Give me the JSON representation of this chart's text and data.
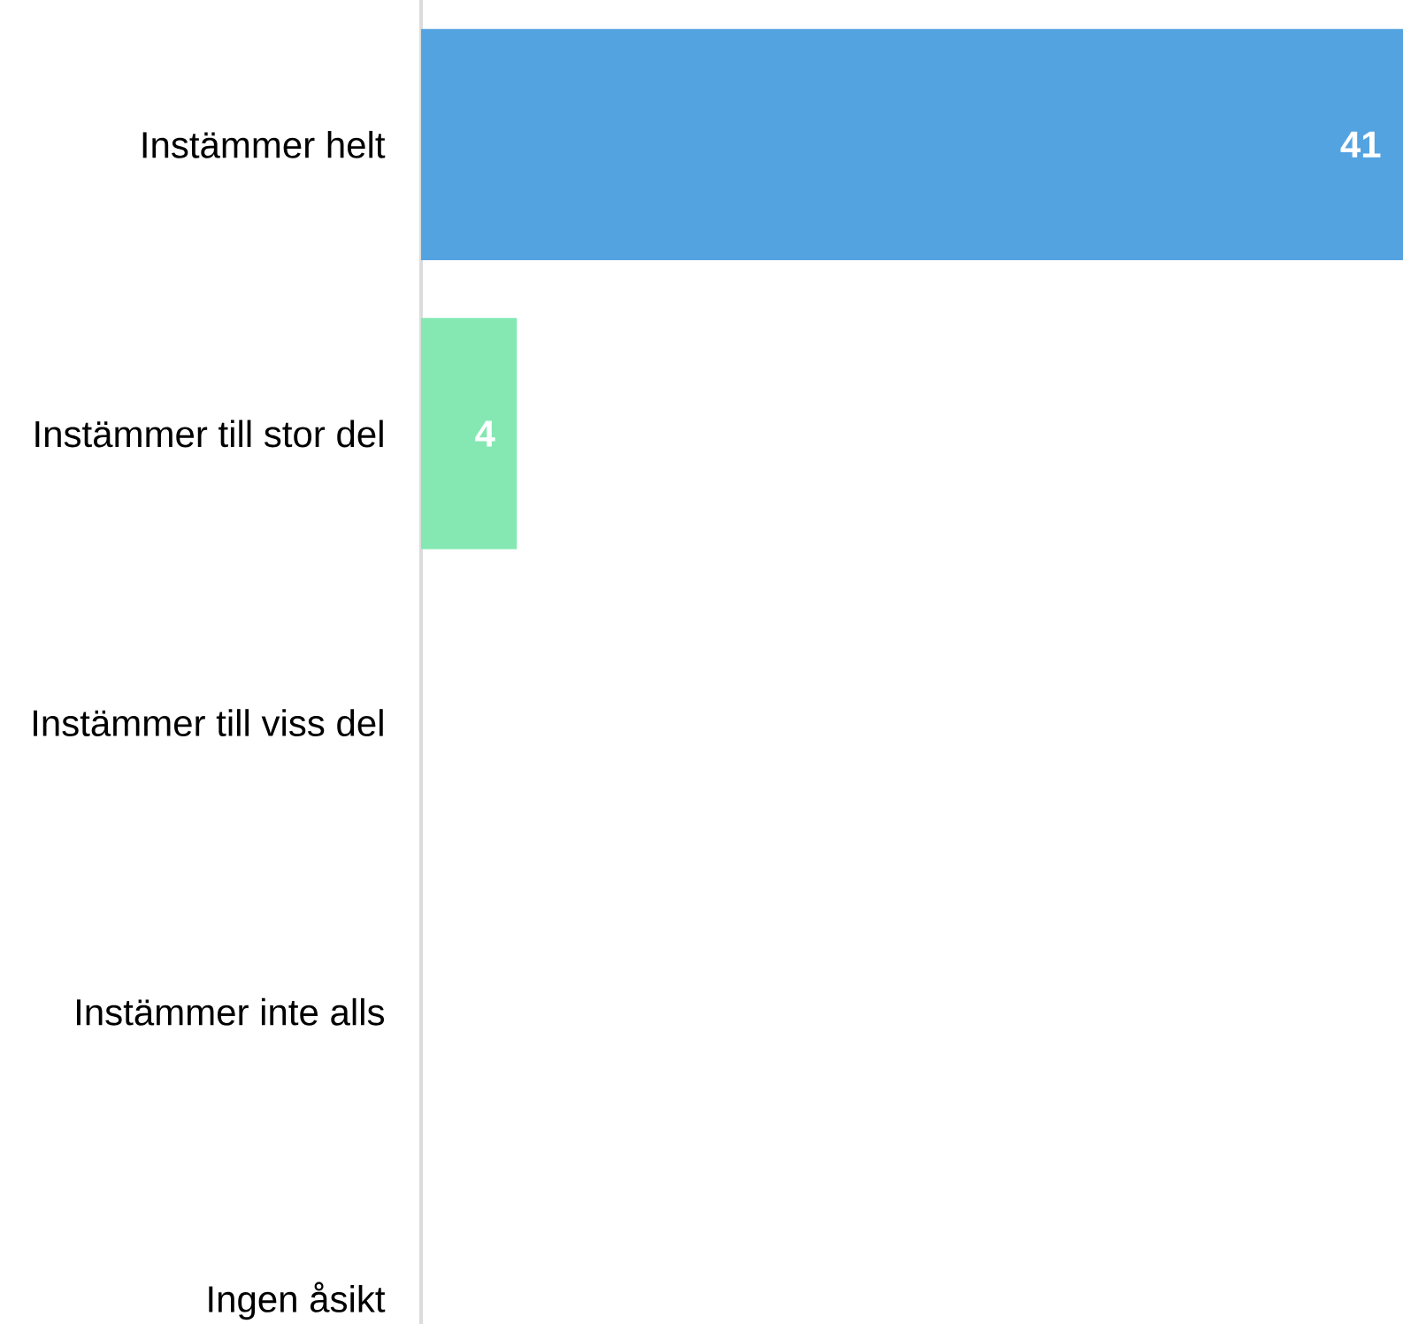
{
  "chart_data": {
    "type": "bar",
    "orientation": "horizontal",
    "categories": [
      "Instämmer helt",
      "Instämmer till stor del",
      "Instämmer till viss del",
      "Instämmer inte alls",
      "Ingen åsikt"
    ],
    "values": [
      41,
      4,
      0,
      0,
      0
    ],
    "colors": [
      "#54a3e1",
      "#85e8b3",
      "#85e8b3",
      "#85e8b3",
      "#85e8b3"
    ],
    "value_labels": [
      "41",
      "4",
      null,
      null,
      null
    ],
    "xlim": [
      0,
      41
    ],
    "tick_labels": "y"
  }
}
